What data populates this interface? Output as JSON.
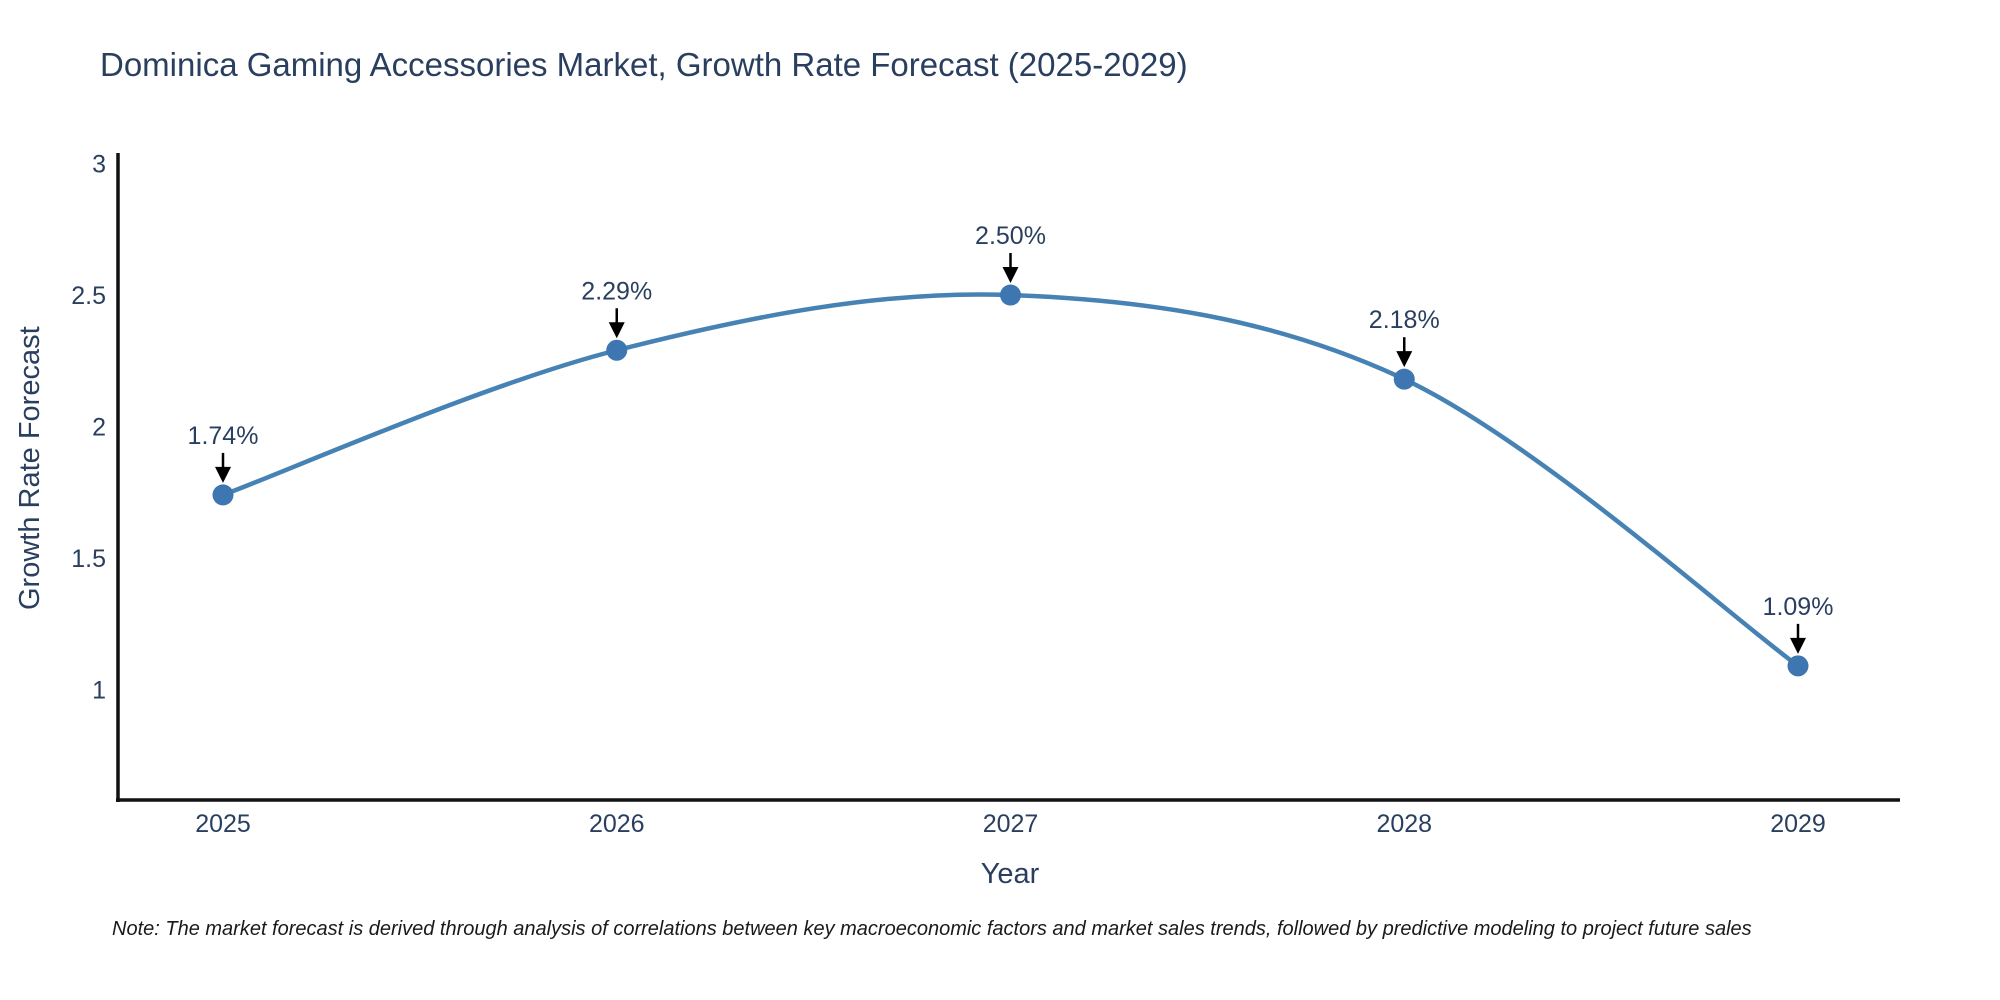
{
  "note": "Note: The market forecast is derived through analysis of correlations between key macroeconomic factors and market sales trends, followed by predictive modeling to project future sales",
  "chart_data": {
    "type": "line",
    "title": "Dominica Gaming Accessories Market, Growth Rate Forecast (2025-2029)",
    "xlabel": "Year",
    "ylabel": "Growth Rate Forecast",
    "categories": [
      "2025",
      "2026",
      "2027",
      "2028",
      "2029"
    ],
    "values": [
      1.74,
      2.29,
      2.5,
      2.18,
      1.09
    ],
    "point_labels": [
      "1.74%",
      "2.29%",
      "2.50%",
      "2.18%",
      "1.09%"
    ],
    "yticks": [
      1,
      1.5,
      2,
      2.5,
      3
    ],
    "ylim": [
      0.58,
      3.04
    ],
    "line_shape": "spline",
    "grid": false,
    "legend": "none",
    "annotation_style": "label-with-down-arrow",
    "colors": {
      "line": "#4682b4",
      "marker": "#3d76b0",
      "axis": "#111111",
      "text": "#2a3f5f",
      "arrow": "#000000",
      "note": "#1a1a1a",
      "background": "#ffffff"
    }
  }
}
